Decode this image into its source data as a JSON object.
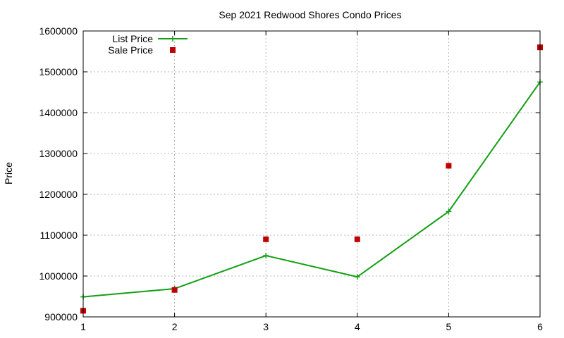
{
  "chart_data": {
    "type": "line",
    "title": "Sep 2021 Redwood Shores Condo Prices",
    "xlabel": "",
    "ylabel": "Price",
    "x": [
      1,
      2,
      3,
      4,
      5,
      6
    ],
    "xlim": [
      1,
      6
    ],
    "ylim": [
      900000,
      1600000
    ],
    "xticks": [
      1,
      2,
      3,
      4,
      5,
      6
    ],
    "yticks": [
      900000,
      1000000,
      1100000,
      1200000,
      1300000,
      1400000,
      1500000,
      1600000
    ],
    "grid": true,
    "legend_position": "top-left",
    "series": [
      {
        "name": "List Price",
        "style": "line-with-plus-markers",
        "color": "#12a012",
        "values": [
          949000,
          969000,
          1050000,
          998000,
          1158000,
          1475000
        ]
      },
      {
        "name": "Sale Price",
        "style": "square-markers",
        "color": "#c00000",
        "values": [
          915000,
          966000,
          1090000,
          1090000,
          1270000,
          1560000
        ]
      }
    ]
  }
}
